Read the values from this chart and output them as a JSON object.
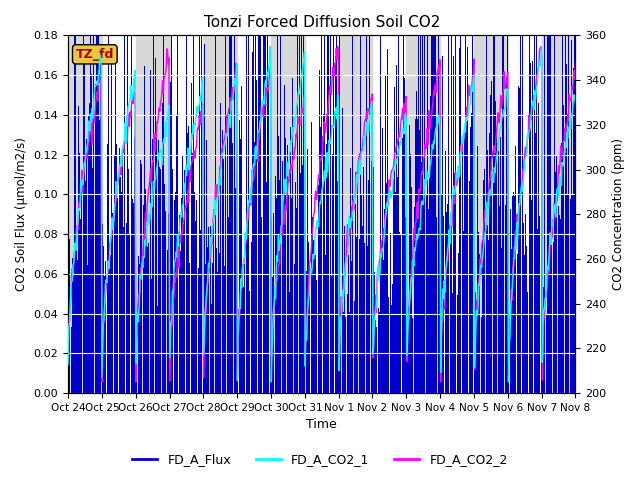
{
  "title": "Tonzi Forced Diffusion Soil CO2",
  "xlabel": "Time",
  "ylabel_left": "CO2 Soil Flux (μmol/m2/s)",
  "ylabel_right": "CO2 Concentration (ppm)",
  "ylim_left": [
    0.0,
    0.18
  ],
  "ylim_right": [
    200,
    360
  ],
  "yticks_left": [
    0.0,
    0.02,
    0.04,
    0.06,
    0.08,
    0.1,
    0.12,
    0.14,
    0.16,
    0.18
  ],
  "yticks_right": [
    200,
    220,
    240,
    260,
    280,
    300,
    320,
    340,
    360
  ],
  "xtick_labels": [
    "Oct 24",
    "Oct 25",
    "Oct 26",
    "Oct 27",
    "Oct 28",
    "Oct 29",
    "Oct 30",
    "Oct 31",
    "Nov 1",
    "Nov 2",
    "Nov 3",
    "Nov 4",
    "Nov 5",
    "Nov 6",
    "Nov 7",
    "Nov 8"
  ],
  "flux_color": "#0000CD",
  "co2_1_color": "#00FFFF",
  "co2_2_color": "#FF00FF",
  "label_box_facecolor": "#E8C840",
  "label_text": "TZ_fd",
  "label_text_color": "#AA0000",
  "bg_band_color": "#D8D8D8",
  "n_days": 15,
  "seed": 42
}
